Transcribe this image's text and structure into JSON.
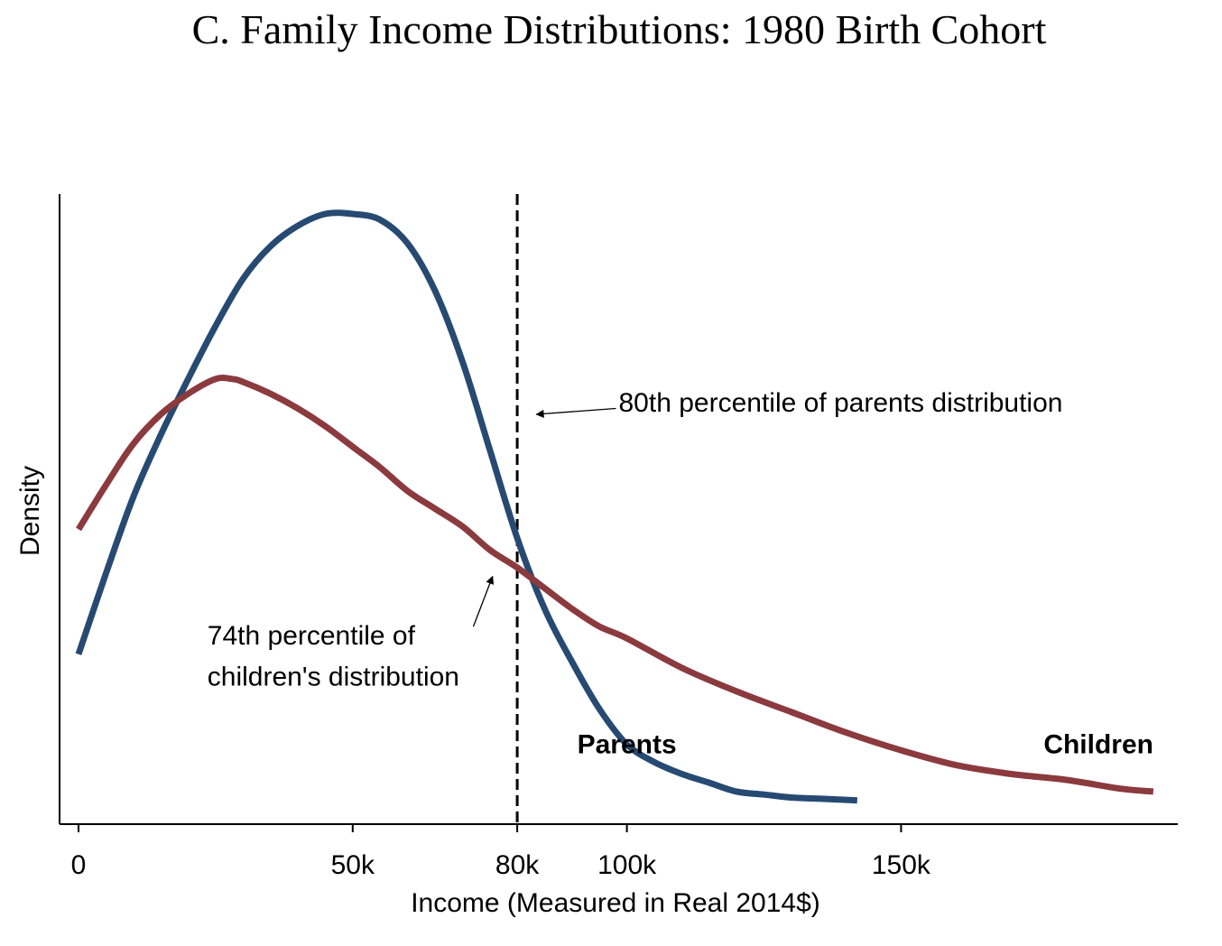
{
  "chart_data": {
    "type": "line",
    "title": "C. Family Income Distributions: 1980 Birth Cohort",
    "xlabel": "Income (Measured in Real 2014$)",
    "ylabel": "Density",
    "xlim": [
      0,
      197
    ],
    "ylim": [
      0,
      1
    ],
    "grid": false,
    "legend": "none",
    "x_ticks": [
      {
        "value": 0,
        "label": "0"
      },
      {
        "value": 50,
        "label": "50k"
      },
      {
        "value": 80,
        "label": "80k"
      },
      {
        "value": 100,
        "label": "100k"
      },
      {
        "value": 150,
        "label": "150k"
      }
    ],
    "reference_line": {
      "x": 80,
      "style": "dashed",
      "color": "#000000"
    },
    "series": [
      {
        "name": "Parents",
        "color": "#264a72",
        "label_at": {
          "x": 100,
          "y": 0.1
        },
        "x": [
          0,
          5,
          10,
          15,
          20,
          25,
          30,
          35,
          40,
          45,
          50,
          55,
          60,
          65,
          70,
          75,
          80,
          85,
          90,
          95,
          100,
          105,
          110,
          115,
          120,
          125,
          130,
          135,
          140,
          142
        ],
        "y": [
          0.253,
          0.39,
          0.52,
          0.625,
          0.72,
          0.81,
          0.89,
          0.945,
          0.98,
          1.0,
          1.0,
          0.99,
          0.95,
          0.87,
          0.75,
          0.6,
          0.45,
          0.33,
          0.24,
          0.16,
          0.1,
          0.07,
          0.05,
          0.035,
          0.02,
          0.015,
          0.01,
          0.008,
          0.006,
          0.005
        ]
      },
      {
        "name": "Children",
        "color": "#8b3a3e",
        "label_at": {
          "x": 186,
          "y": 0.1
        },
        "x": [
          0,
          5,
          10,
          15,
          20,
          25,
          28,
          30,
          35,
          40,
          45,
          50,
          55,
          60,
          65,
          70,
          75,
          80,
          85,
          90,
          95,
          100,
          110,
          120,
          130,
          140,
          150,
          160,
          170,
          180,
          190,
          196
        ],
        "y": [
          0.465,
          0.54,
          0.61,
          0.66,
          0.695,
          0.72,
          0.72,
          0.715,
          0.695,
          0.67,
          0.64,
          0.605,
          0.57,
          0.53,
          0.5,
          0.47,
          0.43,
          0.4,
          0.365,
          0.33,
          0.3,
          0.28,
          0.23,
          0.19,
          0.155,
          0.12,
          0.09,
          0.065,
          0.05,
          0.04,
          0.025,
          0.02
        ]
      }
    ],
    "annotations": [
      {
        "text": "80th percentile of parents distribution",
        "text_x": 98.5,
        "text_y": 0.68,
        "arrow_from": [
          98,
          0.67
        ],
        "arrow_to": [
          83.5,
          0.66
        ]
      },
      {
        "text": "74th percentile of",
        "text_x": 23.5,
        "text_y": 0.285,
        "arrow_from": [
          72,
          0.3
        ],
        "arrow_to": [
          75.5,
          0.385
        ]
      },
      {
        "text": "children's distribution",
        "text_x": 23.5,
        "text_y": 0.215
      }
    ]
  }
}
